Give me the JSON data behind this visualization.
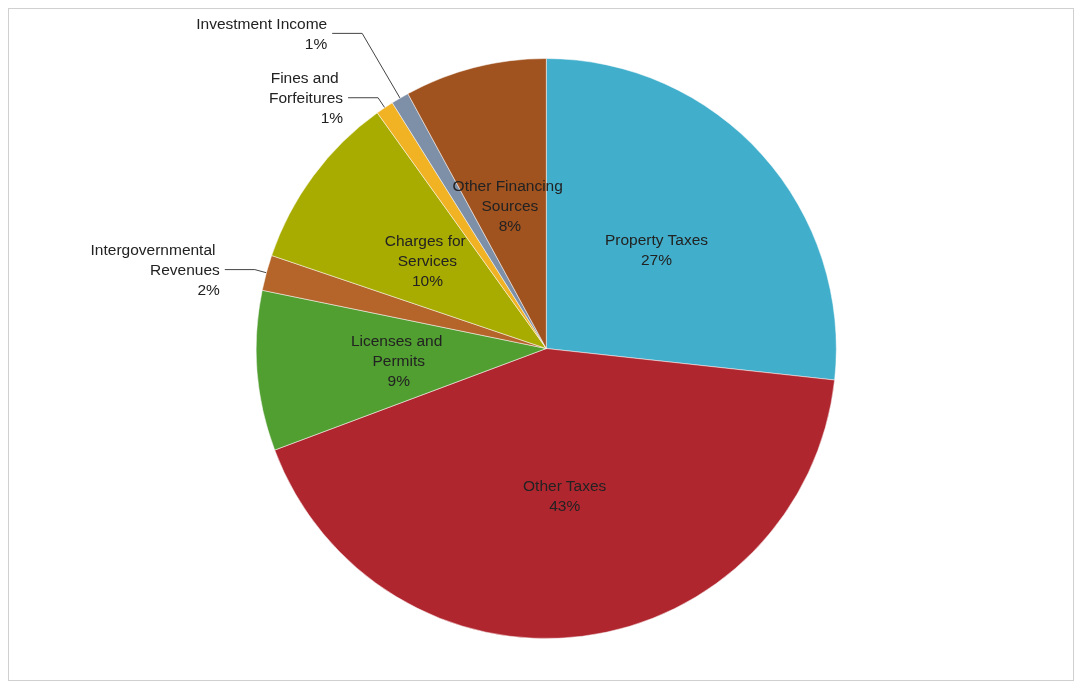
{
  "chart_data": {
    "type": "pie",
    "categories": [
      "Property Taxes",
      "Other Taxes",
      "Licenses and Permits",
      "Intergovernmental Revenues",
      "Charges for Services",
      "Fines and Forfeitures",
      "Investment Income",
      "Other Financing Sources"
    ],
    "values": [
      27,
      43,
      9,
      2,
      10,
      1,
      1,
      8
    ],
    "colors": [
      "#41aecb",
      "#b0262f",
      "#519e31",
      "#b5652a",
      "#a9ac00",
      "#f1b224",
      "#7e8fa8",
      "#a0521f"
    ],
    "value_labels": [
      "27%",
      "43%",
      "9%",
      "2%",
      "10%",
      "1%",
      "1%",
      "8%"
    ],
    "legend": false
  }
}
